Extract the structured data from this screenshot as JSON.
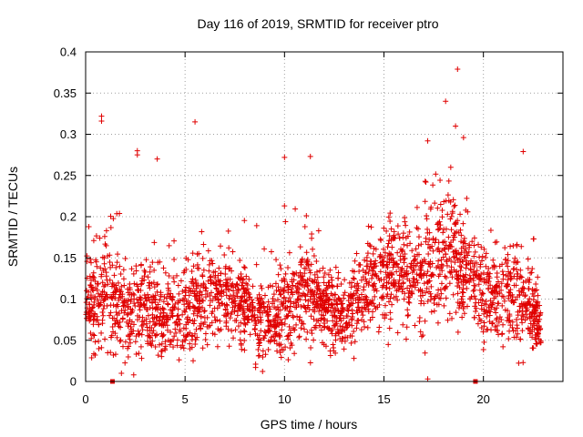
{
  "chart_data": {
    "type": "scatter",
    "title": "Day 116 of 2019, SRMTID for receiver ptro",
    "xlabel": "GPS time / hours",
    "ylabel": "SRMTID / TECUs",
    "xlim": [
      0,
      24
    ],
    "ylim": [
      0,
      0.4
    ],
    "xticks": [
      0,
      5,
      10,
      15,
      20
    ],
    "xtick_labels": [
      "0",
      "5",
      "10",
      "15",
      "20"
    ],
    "yticks": [
      0,
      0.05,
      0.1,
      0.15,
      0.2,
      0.25,
      0.3,
      0.35,
      0.4
    ],
    "ytick_labels": [
      "0",
      "0.05",
      "0.1",
      "0.15",
      "0.2",
      "0.25",
      "0.3",
      "0.35",
      "0.4"
    ],
    "grid": true,
    "marker": "plus",
    "color": "#e00000",
    "x_range_of_data": [
      0.0,
      22.9
    ],
    "typical_y_range": [
      0.02,
      0.2
    ],
    "square_markers": [
      {
        "x": 1.35,
        "y": 0.0
      },
      {
        "x": 19.6,
        "y": 0.0
      }
    ],
    "notable_points": [
      {
        "x": 0.8,
        "y": 0.322
      },
      {
        "x": 0.8,
        "y": 0.316
      },
      {
        "x": 5.5,
        "y": 0.315
      },
      {
        "x": 2.6,
        "y": 0.28
      },
      {
        "x": 2.6,
        "y": 0.275
      },
      {
        "x": 3.6,
        "y": 0.27
      },
      {
        "x": 10.0,
        "y": 0.272
      },
      {
        "x": 11.3,
        "y": 0.273
      },
      {
        "x": 17.2,
        "y": 0.292
      },
      {
        "x": 18.1,
        "y": 0.34
      },
      {
        "x": 18.6,
        "y": 0.31
      },
      {
        "x": 18.7,
        "y": 0.379
      },
      {
        "x": 19.0,
        "y": 0.296
      },
      {
        "x": 22.0,
        "y": 0.279
      },
      {
        "x": 17.2,
        "y": 0.003
      },
      {
        "x": 1.8,
        "y": 0.01
      }
    ],
    "density_profile": [
      {
        "hour": 0,
        "mean": 0.085,
        "spread": 0.045
      },
      {
        "hour": 1,
        "mean": 0.11,
        "spread": 0.06
      },
      {
        "hour": 2,
        "mean": 0.085,
        "spread": 0.045
      },
      {
        "hour": 3,
        "mean": 0.09,
        "spread": 0.045
      },
      {
        "hour": 4,
        "mean": 0.075,
        "spread": 0.04
      },
      {
        "hour": 5,
        "mean": 0.085,
        "spread": 0.045
      },
      {
        "hour": 6,
        "mean": 0.1,
        "spread": 0.045
      },
      {
        "hour": 7,
        "mean": 0.1,
        "spread": 0.04
      },
      {
        "hour": 8,
        "mean": 0.09,
        "spread": 0.04
      },
      {
        "hour": 9,
        "mean": 0.07,
        "spread": 0.035
      },
      {
        "hour": 10,
        "mean": 0.09,
        "spread": 0.05
      },
      {
        "hour": 11,
        "mean": 0.11,
        "spread": 0.05
      },
      {
        "hour": 12,
        "mean": 0.09,
        "spread": 0.04
      },
      {
        "hour": 13,
        "mean": 0.08,
        "spread": 0.035
      },
      {
        "hour": 14,
        "mean": 0.1,
        "spread": 0.04
      },
      {
        "hour": 15,
        "mean": 0.13,
        "spread": 0.045
      },
      {
        "hour": 16,
        "mean": 0.13,
        "spread": 0.05
      },
      {
        "hour": 17,
        "mean": 0.13,
        "spread": 0.055
      },
      {
        "hour": 18,
        "mean": 0.16,
        "spread": 0.06
      },
      {
        "hour": 19,
        "mean": 0.14,
        "spread": 0.055
      },
      {
        "hour": 20,
        "mean": 0.1,
        "spread": 0.045
      },
      {
        "hour": 21,
        "mean": 0.11,
        "spread": 0.05
      },
      {
        "hour": 22,
        "mean": 0.1,
        "spread": 0.045
      },
      {
        "hour": 23,
        "mean": 0.07,
        "spread": 0.025
      }
    ]
  }
}
